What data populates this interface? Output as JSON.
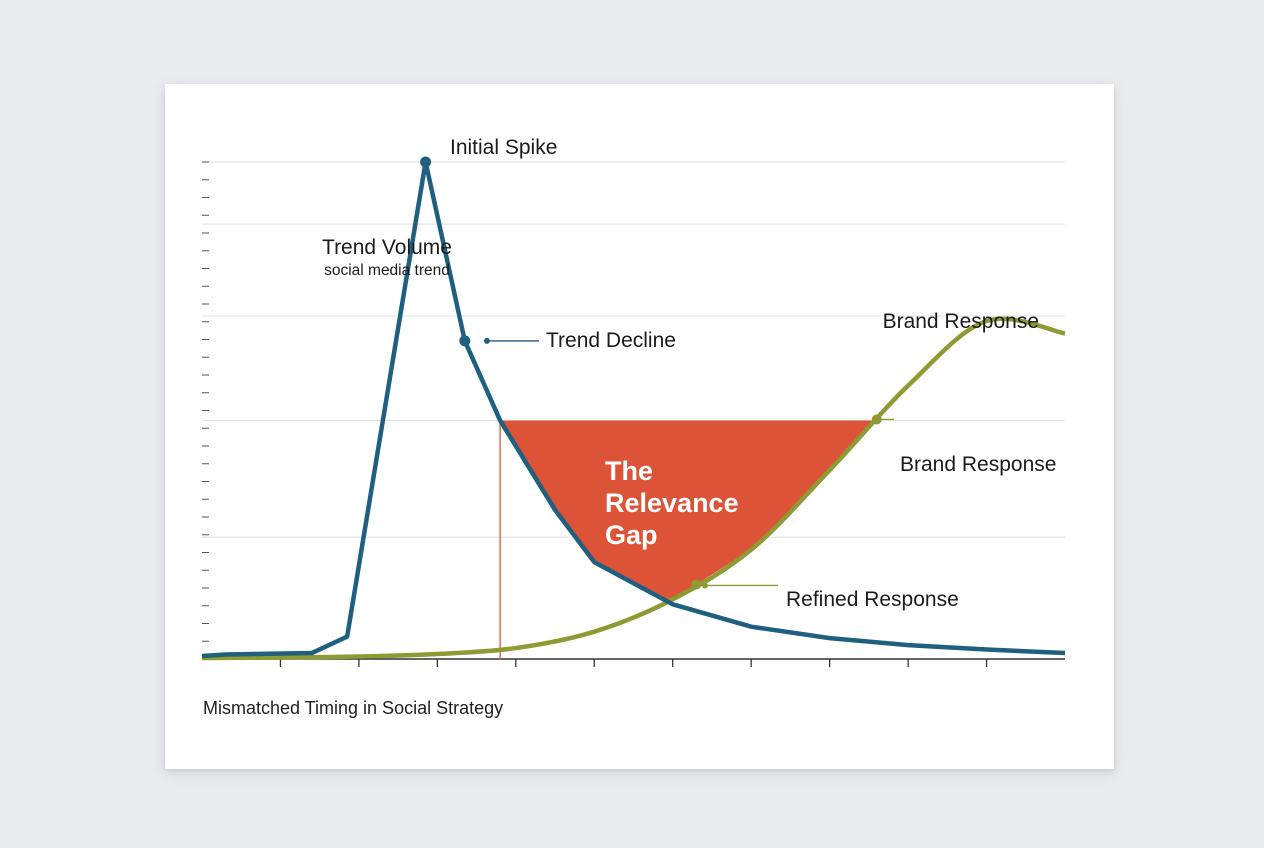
{
  "chart_data": {
    "type": "line",
    "title": "Mismatched Timing in Social Strategy",
    "ylabel": "Trend Volume",
    "ylabel_sub": "social media trend",
    "x_tick_count": 11,
    "ylim": [
      0,
      100
    ],
    "grid": true,
    "series": [
      {
        "name": "Trend Volume",
        "color": "#1f5f7f",
        "x": [
          0,
          0.3,
          1.4,
          1.85,
          2.85,
          3.35,
          3.8,
          4.5,
          5.0,
          6.0,
          7.0,
          8.0,
          9.0,
          10.0,
          11.0
        ],
        "values": [
          0.6,
          0.9,
          1.2,
          4.5,
          100,
          64,
          48,
          30,
          19.5,
          11,
          6.5,
          4.2,
          2.8,
          1.9,
          1.2
        ]
      },
      {
        "name": "Brand Response",
        "color": "#8e9a32",
        "x": [
          0,
          1,
          2,
          3,
          4,
          5,
          6,
          7,
          8,
          9,
          10,
          11
        ],
        "values": [
          0.2,
          0.3,
          0.5,
          1.0,
          2.2,
          5.5,
          12,
          22,
          38,
          55,
          68,
          65.5
        ]
      }
    ],
    "gap_region": {
      "label": [
        "The",
        "Relevance",
        "Gap"
      ],
      "color": "#dd5338",
      "level": 48
    },
    "annotations": [
      {
        "id": "initial-spike",
        "text": "Initial Spike"
      },
      {
        "id": "trend-decline",
        "text": "Trend Decline"
      },
      {
        "id": "brand-response-top",
        "text": "Brand Response"
      },
      {
        "id": "brand-response-mid",
        "text": "Brand Response"
      },
      {
        "id": "refined-response",
        "text": "Refined Response"
      }
    ]
  }
}
